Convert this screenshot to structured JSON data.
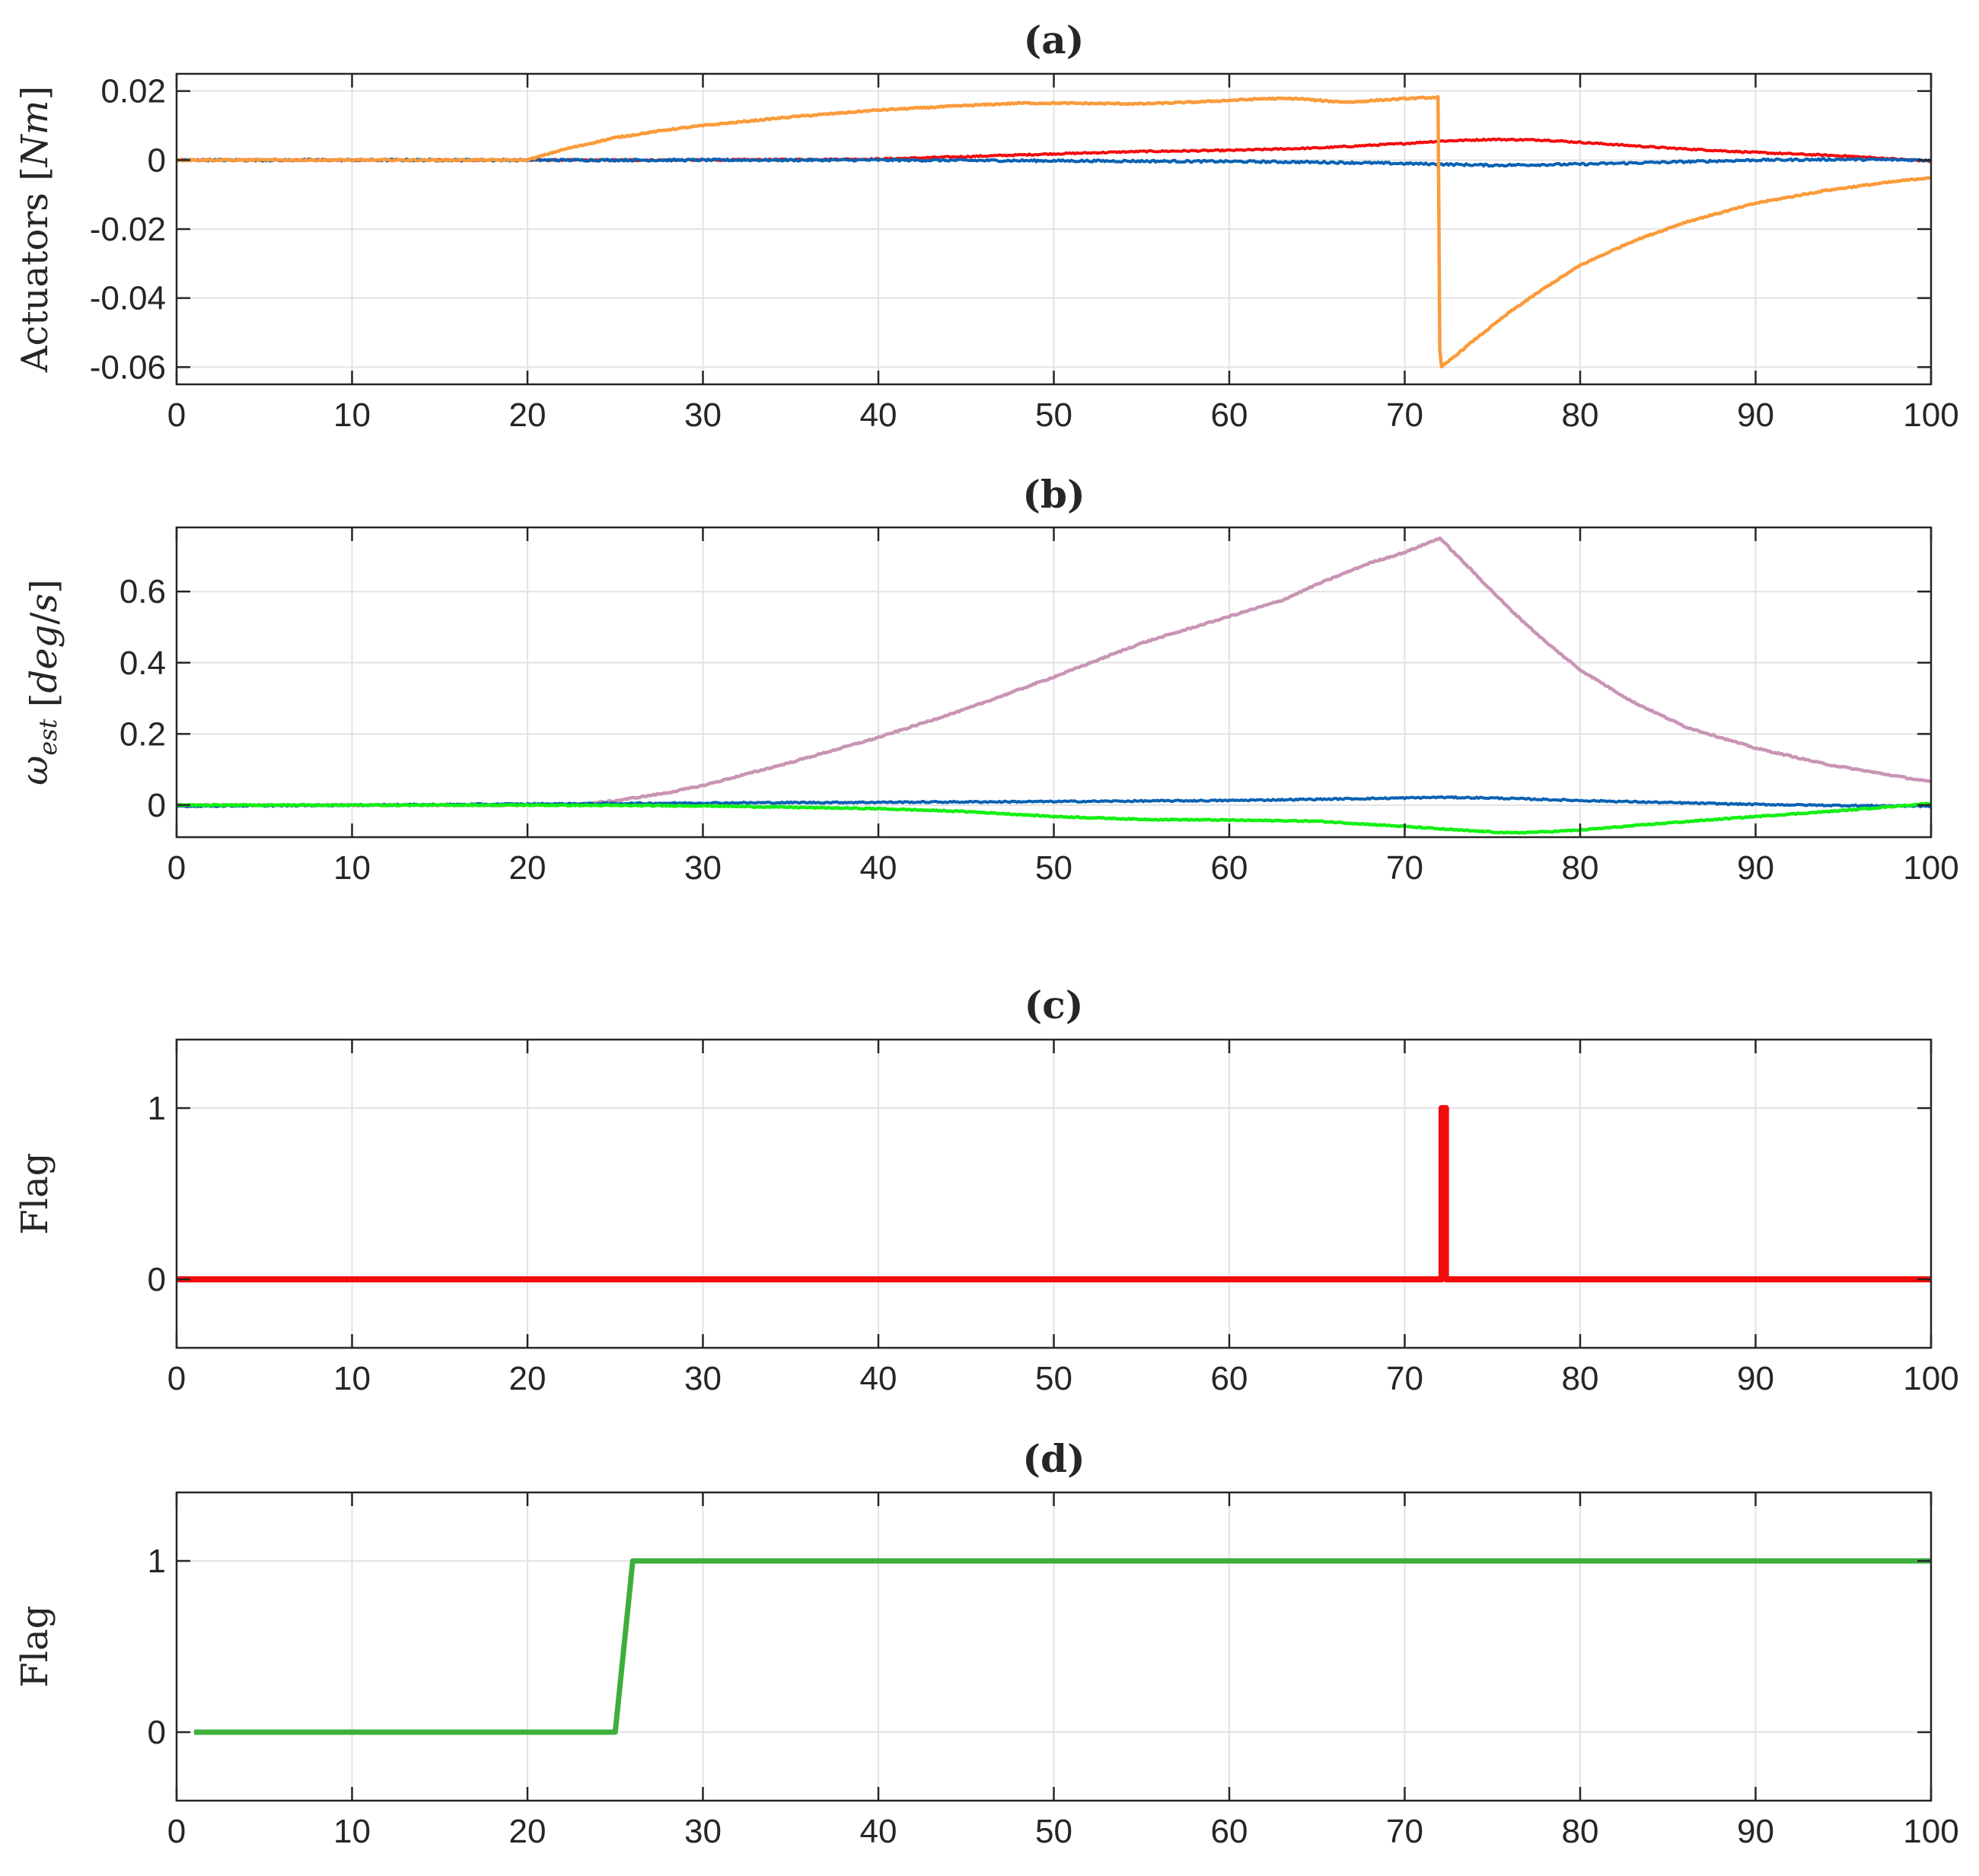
{
  "chart_data": [
    {
      "id": "a",
      "type": "line",
      "title": "(a)",
      "ylabel": "Actuators [Nm]",
      "ylabel_parts": [
        {
          "text": "Actuators ",
          "italic": false
        },
        {
          "text": "[",
          "italic": false
        },
        {
          "text": "Nm",
          "italic": true
        },
        {
          "text": "]",
          "italic": false
        }
      ],
      "xlim": [
        0,
        100
      ],
      "ylim": [
        -0.065,
        0.025
      ],
      "xticks": [
        0,
        10,
        20,
        30,
        40,
        50,
        60,
        70,
        80,
        90,
        100
      ],
      "xtick_labels": [
        "0",
        "10",
        "20",
        "30",
        "40",
        "50",
        "60",
        "70",
        "80",
        "90",
        "100"
      ],
      "yticks": [
        -0.06,
        -0.04,
        -0.02,
        0,
        0.02
      ],
      "ytick_labels": [
        "-0.06",
        "-0.04",
        "-0.02",
        "0",
        "0.02"
      ],
      "grid": true,
      "series": [
        {
          "name": "red",
          "color": "#f20d0d",
          "width": 4,
          "noise": 0.0002,
          "x": [
            0,
            20,
            30,
            40,
            45,
            50,
            55,
            60,
            65,
            70,
            72,
            75,
            78,
            85,
            90,
            95,
            100
          ],
          "y": [
            0,
            0,
            0,
            0.0003,
            0.001,
            0.0018,
            0.0025,
            0.0028,
            0.0035,
            0.0048,
            0.0055,
            0.006,
            0.0058,
            0.0035,
            0.0022,
            0.0012,
            -0.0003
          ]
        },
        {
          "name": "blue",
          "color": "#0a62b4",
          "width": 4,
          "noise": 0.0003,
          "x": [
            0,
            20,
            30,
            40,
            50,
            60,
            65,
            70,
            72,
            75,
            80,
            85,
            90,
            95,
            100
          ],
          "y": [
            0,
            0,
            0,
            0,
            -0.0002,
            -0.0004,
            -0.0006,
            -0.001,
            -0.0012,
            -0.0015,
            -0.0012,
            -0.0006,
            0,
            0.0002,
            0
          ]
        },
        {
          "name": "orange",
          "color": "#fa9b3b",
          "width": 4.5,
          "noise": 0.0002,
          "x": [
            0,
            20,
            22,
            25,
            28,
            30,
            35,
            40,
            45,
            48,
            50,
            55,
            58,
            60,
            62,
            64,
            65,
            66,
            67,
            68,
            70,
            71.9,
            72,
            72.1,
            74,
            76,
            78,
            80,
            83,
            86,
            90,
            94,
            97,
            100
          ],
          "y": [
            0,
            0,
            0.003,
            0.0065,
            0.0088,
            0.01,
            0.0125,
            0.0145,
            0.0158,
            0.0165,
            0.0165,
            0.0163,
            0.0168,
            0.0173,
            0.0178,
            0.0178,
            0.0173,
            0.017,
            0.0168,
            0.0172,
            0.0178,
            0.0182,
            -0.055,
            -0.06,
            -0.052,
            -0.044,
            -0.037,
            -0.0305,
            -0.0235,
            -0.018,
            -0.0125,
            -0.0088,
            -0.0068,
            -0.005
          ]
        }
      ]
    },
    {
      "id": "b",
      "type": "line",
      "title": "(b)",
      "ylabel": "ω_est [deg/s]",
      "ylabel_parts": [
        {
          "text": "ω",
          "italic": true
        },
        {
          "text": "est",
          "italic": true,
          "sub": true
        },
        {
          "text": " [",
          "italic": false
        },
        {
          "text": "deg",
          "italic": true
        },
        {
          "text": "/",
          "italic": false
        },
        {
          "text": "s",
          "italic": true
        },
        {
          "text": "]",
          "italic": false
        }
      ],
      "xlim": [
        0,
        100
      ],
      "ylim": [
        -0.09,
        0.78
      ],
      "xticks": [
        0,
        10,
        20,
        30,
        40,
        50,
        60,
        70,
        80,
        90,
        100
      ],
      "xtick_labels": [
        "0",
        "10",
        "20",
        "30",
        "40",
        "50",
        "60",
        "70",
        "80",
        "90",
        "100"
      ],
      "yticks": [
        0,
        0.2,
        0.4,
        0.6
      ],
      "ytick_labels": [
        "0",
        "0.2",
        "0.4",
        "0.6"
      ],
      "grid": true,
      "series": [
        {
          "name": "pink",
          "color": "#c994b5",
          "width": 4.5,
          "noise": 0.002,
          "x": [
            0,
            20,
            23,
            25,
            28,
            30,
            35,
            40,
            45,
            50,
            55,
            60,
            63,
            65,
            68,
            70,
            72,
            74,
            76,
            78,
            80,
            83,
            86,
            90,
            94,
            97,
            100
          ],
          "y": [
            0,
            0,
            0.002,
            0.012,
            0.035,
            0.055,
            0.12,
            0.19,
            0.27,
            0.36,
            0.455,
            0.53,
            0.575,
            0.62,
            0.68,
            0.71,
            0.75,
            0.65,
            0.55,
            0.46,
            0.38,
            0.29,
            0.22,
            0.16,
            0.115,
            0.09,
            0.065
          ]
        },
        {
          "name": "blue",
          "color": "#0a62b4",
          "width": 4,
          "noise": 0.002,
          "x": [
            0,
            20,
            30,
            40,
            50,
            60,
            70,
            72,
            75,
            80,
            85,
            90,
            95,
            100
          ],
          "y": [
            -0.003,
            0.003,
            0.006,
            0.008,
            0.01,
            0.013,
            0.02,
            0.022,
            0.02,
            0.013,
            0.007,
            0.002,
            -0.001,
            -0.003
          ]
        },
        {
          "name": "green",
          "color": "#14f014",
          "width": 4.5,
          "noise": 0.0015,
          "x": [
            0,
            20,
            30,
            40,
            45,
            50,
            55,
            60,
            65,
            70,
            73,
            76,
            78,
            80,
            85,
            90,
            95,
            100
          ],
          "y": [
            0,
            0,
            -0.002,
            -0.01,
            -0.018,
            -0.032,
            -0.04,
            -0.042,
            -0.045,
            -0.06,
            -0.07,
            -0.078,
            -0.075,
            -0.07,
            -0.05,
            -0.032,
            -0.015,
            0.005
          ]
        }
      ]
    },
    {
      "id": "c",
      "type": "line",
      "title": "(c)",
      "ylabel": "Flag",
      "ylabel_parts": [
        {
          "text": "Flag",
          "italic": false
        }
      ],
      "xlim": [
        0,
        100
      ],
      "ylim": [
        -0.4,
        1.4
      ],
      "xticks": [
        0,
        10,
        20,
        30,
        40,
        50,
        60,
        70,
        80,
        90,
        100
      ],
      "xtick_labels": [
        "0",
        "10",
        "20",
        "30",
        "40",
        "50",
        "60",
        "70",
        "80",
        "90",
        "100"
      ],
      "yticks": [
        0,
        1
      ],
      "ytick_labels": [
        "0",
        "1"
      ],
      "grid": true,
      "series": [
        {
          "name": "red",
          "color": "#f20d0d",
          "width": 8,
          "noise": 0,
          "x": [
            0,
            72.1,
            72.1,
            72.35,
            72.35,
            100
          ],
          "y": [
            0,
            0,
            1,
            1,
            0,
            0
          ]
        }
      ]
    },
    {
      "id": "d",
      "type": "line",
      "title": "(d)",
      "ylabel": "Flag",
      "ylabel_parts": [
        {
          "text": "Flag",
          "italic": false
        }
      ],
      "xlim": [
        0,
        100
      ],
      "ylim": [
        -0.4,
        1.4
      ],
      "xticks": [
        0,
        10,
        20,
        30,
        40,
        50,
        60,
        70,
        80,
        90,
        100
      ],
      "xtick_labels": [
        "0",
        "10",
        "20",
        "30",
        "40",
        "50",
        "60",
        "70",
        "80",
        "90",
        "100"
      ],
      "yticks": [
        0,
        1
      ],
      "ytick_labels": [
        "0",
        "1"
      ],
      "grid": true,
      "series": [
        {
          "name": "green",
          "color": "#3daf3a",
          "width": 7,
          "noise": 0,
          "x": [
            1,
            25,
            26,
            100
          ],
          "y": [
            0,
            0,
            1,
            1
          ]
        }
      ]
    }
  ]
}
